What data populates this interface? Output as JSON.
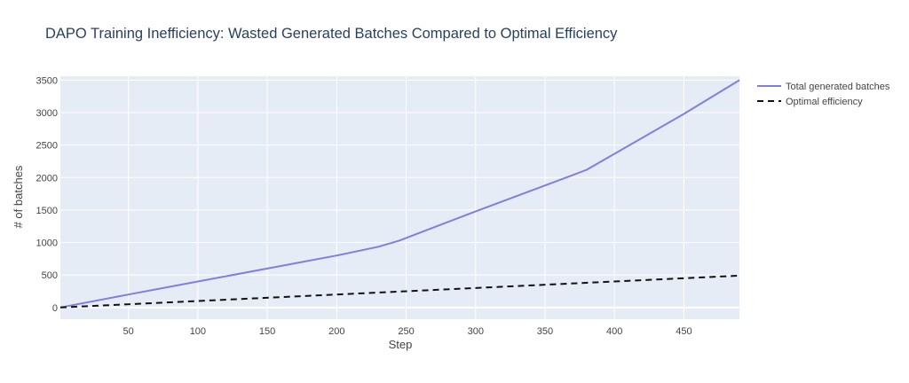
{
  "chart_data": {
    "type": "line",
    "title": "DAPO Training Inefficiency: Wasted Generated Batches Compared to Optimal Efficiency",
    "xlabel": "Step",
    "ylabel": "# of batches",
    "xlim": [
      1,
      490
    ],
    "ylim": [
      -180,
      3560
    ],
    "x_ticks": [
      50,
      100,
      150,
      200,
      250,
      300,
      350,
      400,
      450
    ],
    "y_ticks": [
      0,
      500,
      1000,
      1500,
      2000,
      2500,
      3000,
      3500
    ],
    "grid": true,
    "legend_position": "right",
    "series": [
      {
        "name": "Total generated batches",
        "color": "#7f7fdf",
        "dash": "solid",
        "x": [
          1,
          50,
          100,
          150,
          200,
          230,
          245,
          300,
          370,
          380,
          450,
          490
        ],
        "y": [
          0,
          200,
          400,
          600,
          800,
          935,
          1030,
          1480,
          2040,
          2120,
          2980,
          3500
        ]
      },
      {
        "name": "Optimal efficiency",
        "color": "#111111",
        "dash": "dashed",
        "x": [
          1,
          490
        ],
        "y": [
          0,
          490
        ]
      }
    ]
  },
  "style": {
    "plot_bg": "#e5ecf6",
    "grid_color": "#ffffff",
    "text_color": "#444444",
    "title_color": "#2a3f5f"
  }
}
